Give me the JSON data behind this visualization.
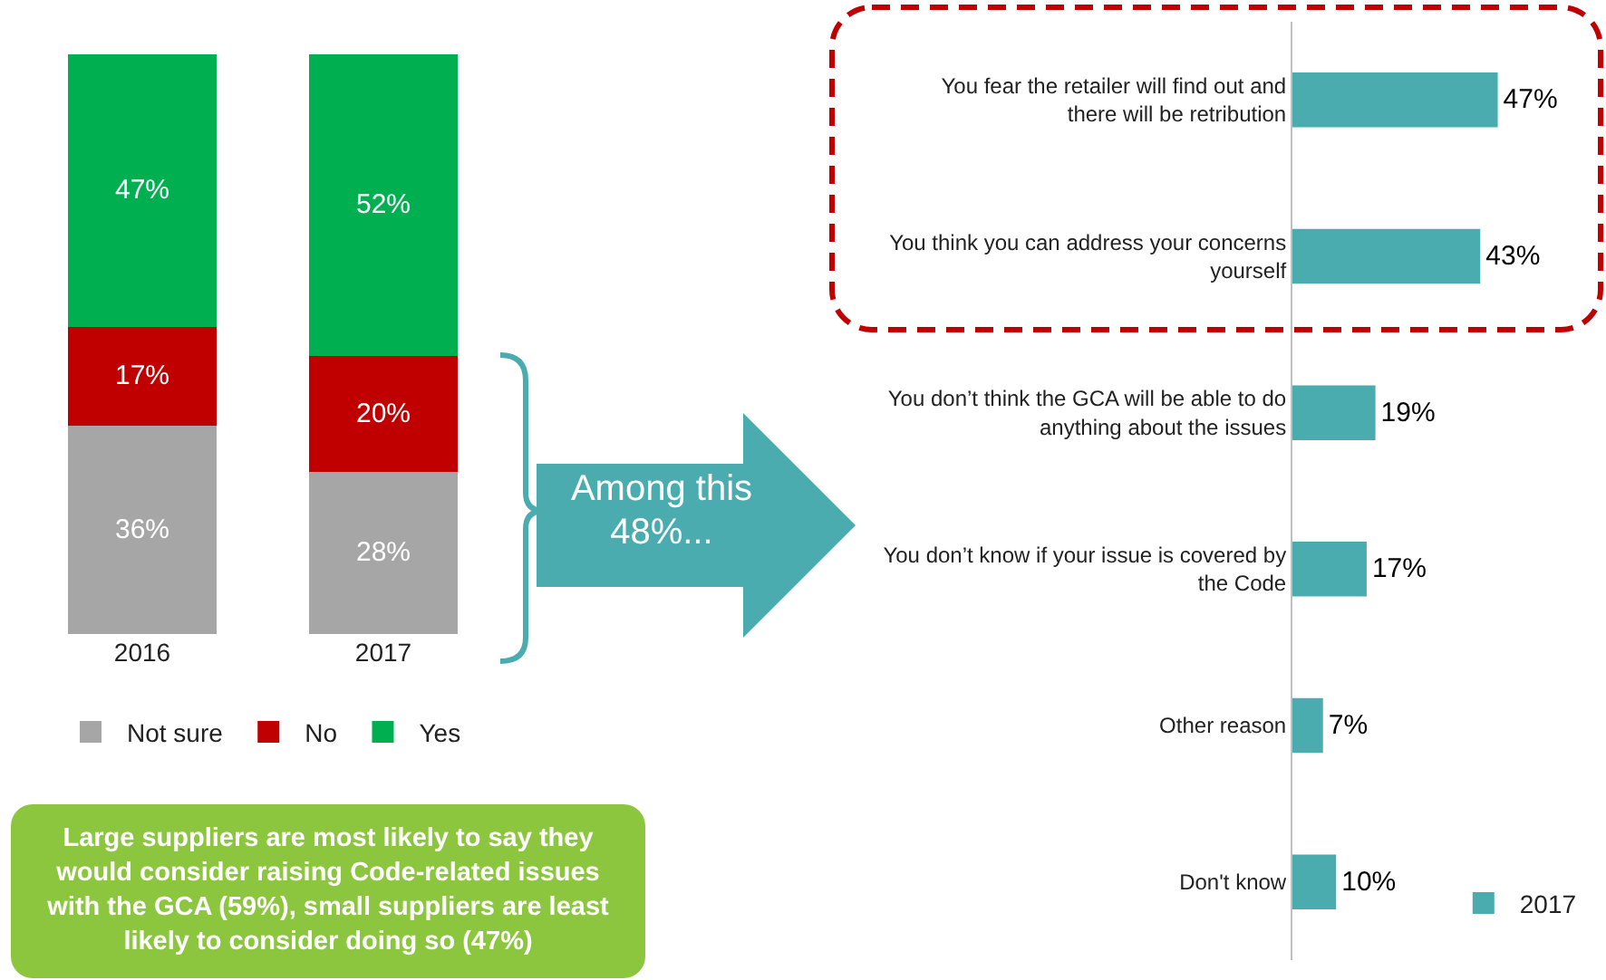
{
  "chart_data": [
    {
      "type": "bar",
      "stacked": true,
      "categories": [
        "2016",
        "2017"
      ],
      "series": [
        {
          "name": "Not sure",
          "color": "#a6a6a6",
          "values": [
            36,
            28
          ],
          "value_labels": [
            "36%",
            "28%"
          ]
        },
        {
          "name": "No",
          "color": "#c00000",
          "values": [
            17,
            20
          ],
          "value_labels": [
            "17%",
            "20%"
          ]
        },
        {
          "name": "Yes",
          "color": "#00b050",
          "values": [
            47,
            52
          ],
          "value_labels": [
            "47%",
            "52%"
          ]
        }
      ],
      "legend": "bottom",
      "annotations": [
        "Large suppliers are most likely to say they would consider raising Code-related issues with the GCA (59%), small suppliers are least likely to consider doing so (47%)",
        "Among this 48%..."
      ]
    },
    {
      "type": "bar",
      "orientation": "horizontal",
      "categories": [
        "You fear the retailer will find out and there will be retribution",
        "You think you can address your concerns yourself",
        "You don’t think the GCA will be able to do anything about the issues",
        "You don’t know if your issue is covered by the Code",
        "Other reason",
        "Don't know"
      ],
      "series": [
        {
          "name": "2017",
          "color": "#4bacb0",
          "values": [
            47,
            43,
            19,
            17,
            7,
            10
          ],
          "value_labels": [
            "47%",
            "43%",
            "19%",
            "17%",
            "7%",
            "10%"
          ]
        }
      ],
      "legend": "bottom right"
    }
  ]
}
